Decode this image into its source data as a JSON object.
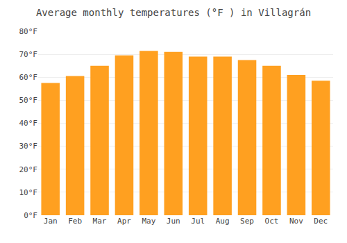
{
  "chart_data": {
    "type": "bar",
    "title": "Average monthly temperatures (°F ) in Villagrán",
    "categories": [
      "Jan",
      "Feb",
      "Mar",
      "Apr",
      "May",
      "Jun",
      "Jul",
      "Aug",
      "Sep",
      "Oct",
      "Nov",
      "Dec"
    ],
    "values": [
      57.5,
      60.5,
      65.0,
      69.5,
      71.5,
      71.0,
      69.0,
      69.0,
      67.5,
      65.0,
      61.0,
      58.5
    ],
    "color": "#FFA020",
    "ylim": [
      0,
      80
    ],
    "yticks": [
      {
        "value": 0,
        "label": "0°F"
      },
      {
        "value": 10,
        "label": "10°F"
      },
      {
        "value": 20,
        "label": "20°F"
      },
      {
        "value": 30,
        "label": "30°F"
      },
      {
        "value": 40,
        "label": "40°F"
      },
      {
        "value": 50,
        "label": "50°F"
      },
      {
        "value": 60,
        "label": "60°F"
      },
      {
        "value": 70,
        "label": "70°F"
      },
      {
        "value": 80,
        "label": "80°F"
      }
    ],
    "grid": true
  }
}
